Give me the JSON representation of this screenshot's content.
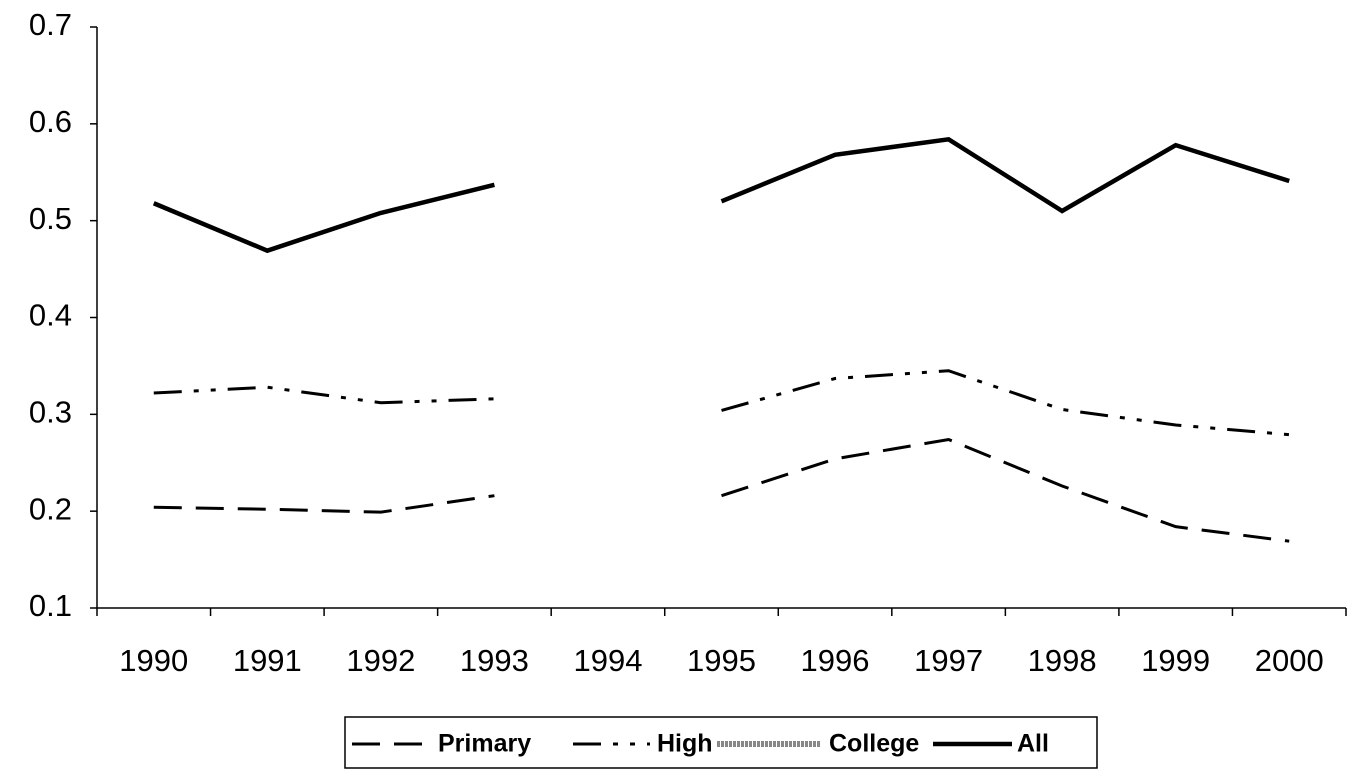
{
  "chart_data": {
    "type": "line",
    "categories": [
      "1990",
      "1991",
      "1992",
      "1993",
      "1994",
      "1995",
      "1996",
      "1997",
      "1998",
      "1999",
      "2000"
    ],
    "series": [
      {
        "name": "Primary",
        "color": "#000000",
        "values": [
          0.204,
          0.202,
          0.199,
          0.216,
          null,
          0.216,
          0.254,
          0.274,
          0.226,
          0.184,
          0.169
        ]
      },
      {
        "name": "High",
        "color": "#000000",
        "values": [
          0.322,
          0.328,
          0.312,
          0.316,
          null,
          0.304,
          0.337,
          0.345,
          0.305,
          0.289,
          0.279
        ]
      },
      {
        "name": "College",
        "color": "#888888",
        "values": [
          null,
          null,
          null,
          null,
          null,
          null,
          null,
          null,
          null,
          null,
          null
        ]
      },
      {
        "name": "All",
        "color": "#000000",
        "values": [
          0.518,
          0.469,
          0.508,
          0.537,
          null,
          0.52,
          0.568,
          0.584,
          0.51,
          0.578,
          0.541
        ]
      }
    ],
    "ylim": [
      0.1,
      0.7
    ],
    "yticks": [
      0.1,
      0.2,
      0.3,
      0.4,
      0.5,
      0.6,
      0.7
    ],
    "legend": "bottom"
  }
}
